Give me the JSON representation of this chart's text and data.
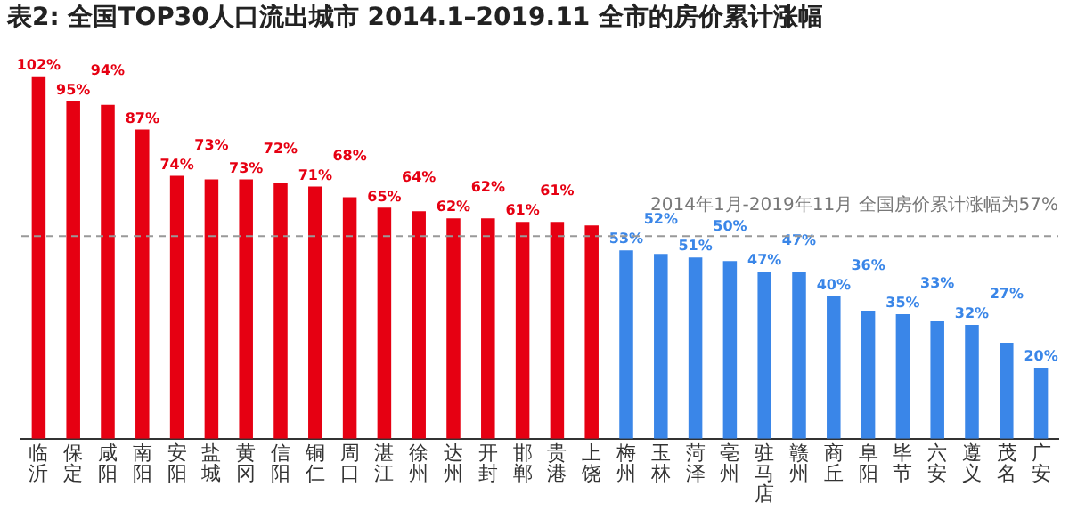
{
  "chart_data": {
    "type": "bar",
    "title": "表2: 全国TOP30人口流出城市 2014.1–2019.11 全市的房价累计涨幅",
    "categories": [
      "临沂",
      "保定",
      "咸阳",
      "南阳",
      "安阳",
      "盐城",
      "黄冈",
      "信阳",
      "铜仁",
      "周口",
      "湛江",
      "徐州",
      "达州",
      "开封",
      "邯郸",
      "贵港",
      "上饶",
      "梅州",
      "玉林",
      "菏泽",
      "亳州",
      "驻马店",
      "赣州",
      "商丘",
      "阜阳",
      "毕节",
      "六安",
      "遵义",
      "茂名",
      "广安"
    ],
    "values": [
      102,
      95,
      94,
      87,
      74,
      73,
      73,
      72,
      71,
      68,
      65,
      64,
      62,
      62,
      61,
      61,
      60,
      53,
      52,
      51,
      50,
      47,
      47,
      40,
      36,
      35,
      33,
      32,
      27,
      20
    ],
    "colors": [
      "#e60012",
      "#e60012",
      "#e60012",
      "#e60012",
      "#e60012",
      "#e60012",
      "#e60012",
      "#e60012",
      "#e60012",
      "#e60012",
      "#e60012",
      "#e60012",
      "#e60012",
      "#e60012",
      "#e60012",
      "#e60012",
      "#e60012",
      "#3a86e8",
      "#3a86e8",
      "#3a86e8",
      "#3a86e8",
      "#3a86e8",
      "#3a86e8",
      "#3a86e8",
      "#3a86e8",
      "#3a86e8",
      "#3a86e8",
      "#3a86e8",
      "#3a86e8",
      "#3a86e8"
    ],
    "value_labels": [
      "102%",
      "95%",
      "94%",
      "87%",
      "74%",
      "73%",
      "73%",
      "72%",
      "71%",
      "68%",
      "65%",
      "64%",
      "62%",
      "62%",
      "61%",
      "61%",
      null,
      "53%",
      "52%",
      "51%",
      "50%",
      "47%",
      "47%",
      "40%",
      "36%",
      "35%",
      "33%",
      "32%",
      "27%",
      "20%"
    ],
    "ref_lines": [
      {
        "axis": "y",
        "value": 57,
        "label": "2014年1月-2019年11月 全国房价累计涨幅为57%",
        "color": "#999999",
        "line_style": "dashed"
      }
    ],
    "relative": false,
    "grid": false,
    "legend": false
  }
}
